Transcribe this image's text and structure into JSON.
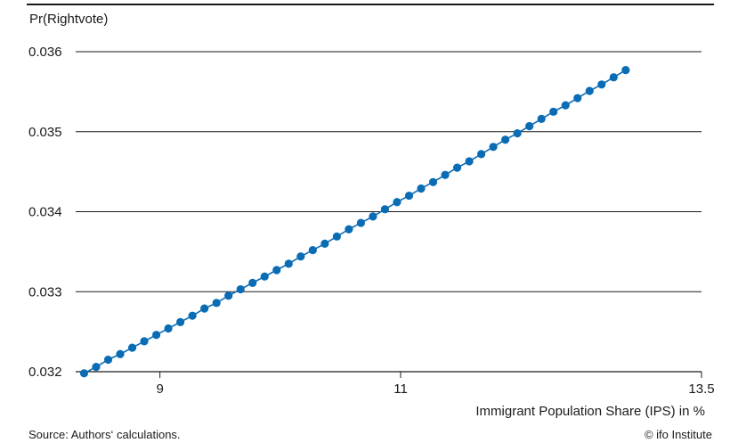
{
  "chart_data": {
    "type": "line",
    "ylabel": "Pr(Rightvote)",
    "xlabel": "Immigrant Population Share (IPS) in %",
    "xlim": [
      8.3,
      13.5
    ],
    "ylim": [
      0.032,
      0.036
    ],
    "x_ticks": [
      9,
      11,
      13.5
    ],
    "x_tick_labels": [
      "9",
      "11",
      "13.5"
    ],
    "y_ticks": [
      0.032,
      0.033,
      0.034,
      0.035,
      0.036
    ],
    "y_tick_labels": [
      "0.032",
      "0.033",
      "0.034",
      "0.035",
      "0.036"
    ],
    "grid": "horizontal",
    "series": [
      {
        "color": "#0a6cb4",
        "x": [
          8.37,
          8.47,
          8.57,
          8.67,
          8.77,
          8.87,
          8.97,
          9.07,
          9.17,
          9.27,
          9.37,
          9.47,
          9.57,
          9.67,
          9.77,
          9.87,
          9.97,
          10.07,
          10.17,
          10.27,
          10.37,
          10.47,
          10.57,
          10.67,
          10.77,
          10.87,
          10.97,
          11.07,
          11.17,
          11.27,
          11.37,
          11.47,
          11.57,
          11.67,
          11.77,
          11.87,
          11.97,
          12.07,
          12.17,
          12.27,
          12.37,
          12.47,
          12.57,
          12.67,
          12.77,
          12.87
        ],
        "values": [
          0.03198,
          0.03206,
          0.03215,
          0.03222,
          0.0323,
          0.03238,
          0.03246,
          0.03254,
          0.03262,
          0.0327,
          0.03279,
          0.03286,
          0.03295,
          0.03303,
          0.03311,
          0.03319,
          0.03327,
          0.03335,
          0.03344,
          0.03352,
          0.0336,
          0.03369,
          0.03378,
          0.03386,
          0.03394,
          0.03403,
          0.03412,
          0.0342,
          0.03429,
          0.03437,
          0.03446,
          0.03455,
          0.03463,
          0.03472,
          0.03481,
          0.0349,
          0.03498,
          0.03507,
          0.03516,
          0.03525,
          0.03533,
          0.03542,
          0.03551,
          0.03559,
          0.03568,
          0.03577
        ]
      }
    ]
  },
  "footer": {
    "source": "Source: Authors‘ calculations.",
    "copyright": "© ifo Institute"
  }
}
